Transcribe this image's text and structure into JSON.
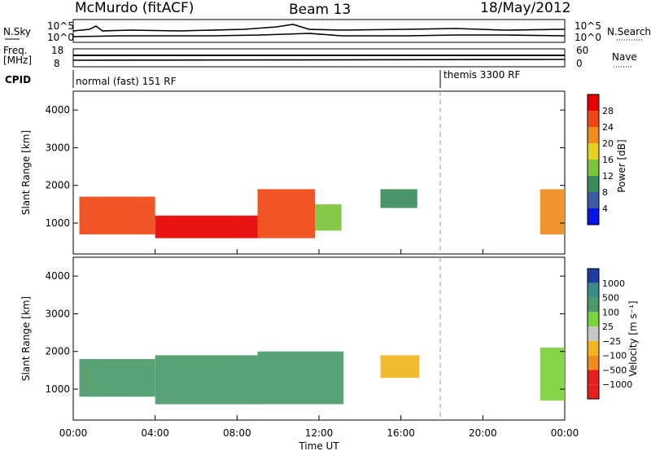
{
  "header": {
    "station": "McMurdo (fitACF)",
    "beam": "Beam 13",
    "date": "18/May/2012"
  },
  "noise_panel": {
    "left_label": "N.Sky",
    "right_label": "N.Search",
    "ticks": [
      "10^5",
      "10^0"
    ]
  },
  "freq_panel": {
    "left_label_line1": "Freq.",
    "left_label_line2": "[MHz]",
    "left_ticks": [
      "18",
      "8"
    ],
    "right_label": "Nave",
    "right_ticks": [
      "60",
      "0"
    ]
  },
  "cpid": {
    "label": "CPID",
    "segments": [
      {
        "name": "normal (fast) 151 RF",
        "start_hour": 0
      },
      {
        "name": "themis 3300 RF",
        "start_hour": 18
      }
    ]
  },
  "chart_data": [
    {
      "type": "heatmap",
      "panel": "power",
      "ylabel": "Slant Range [km]",
      "y_ticks": [
        "1000",
        "2000",
        "3000",
        "4000"
      ],
      "ylim": [
        180,
        4500
      ],
      "xlim": [
        0,
        24
      ],
      "colorbar": {
        "label": "Power [dB]",
        "ticks": [
          "4",
          "8",
          "12",
          "16",
          "20",
          "24",
          "28"
        ]
      },
      "regions": [
        {
          "start_hour": 0.3,
          "end_hour": 4.0,
          "range_km": [
            700,
            1700
          ],
          "value_dB": 24
        },
        {
          "start_hour": 4.0,
          "end_hour": 9.0,
          "range_km": [
            600,
            1200
          ],
          "value_dB": 28
        },
        {
          "start_hour": 9.0,
          "end_hour": 11.8,
          "range_km": [
            600,
            1900
          ],
          "value_dB": 26
        },
        {
          "start_hour": 11.8,
          "end_hour": 13.1,
          "range_km": [
            800,
            1500
          ],
          "value_dB": 12
        },
        {
          "start_hour": 15.0,
          "end_hour": 16.8,
          "range_km": [
            1400,
            1900
          ],
          "value_dB": 10
        },
        {
          "start_hour": 22.8,
          "end_hour": 24.0,
          "range_km": [
            700,
            1900
          ],
          "value_dB": 22
        }
      ]
    },
    {
      "type": "heatmap",
      "panel": "velocity",
      "ylabel": "Slant Range [km]",
      "y_ticks": [
        "1000",
        "2000",
        "3000",
        "4000"
      ],
      "ylim": [
        180,
        4500
      ],
      "xlim": [
        0,
        24
      ],
      "xlabel": "Time UT",
      "x_ticks": [
        "00:00",
        "04:00",
        "08:00",
        "12:00",
        "16:00",
        "20:00",
        "00:00"
      ],
      "colorbar": {
        "label": "Velocity [m s⁻¹]",
        "ticks": [
          "1000",
          "500",
          "100",
          "25",
          "−25",
          "−100",
          "−500",
          "−1000"
        ]
      },
      "regions": [
        {
          "start_hour": 0.3,
          "end_hour": 4.0,
          "range_km": [
            800,
            1800
          ],
          "value_ms": 100
        },
        {
          "start_hour": 4.0,
          "end_hour": 9.0,
          "range_km": [
            600,
            1900
          ],
          "value_ms": 100
        },
        {
          "start_hour": 9.0,
          "end_hour": 13.2,
          "range_km": [
            600,
            2000
          ],
          "value_ms": 100
        },
        {
          "start_hour": 15.0,
          "end_hour": 16.9,
          "range_km": [
            1300,
            1900
          ],
          "value_ms": -100
        },
        {
          "start_hour": 22.8,
          "end_hour": 24.0,
          "range_km": [
            700,
            2100
          ],
          "value_ms": 25
        }
      ]
    }
  ]
}
